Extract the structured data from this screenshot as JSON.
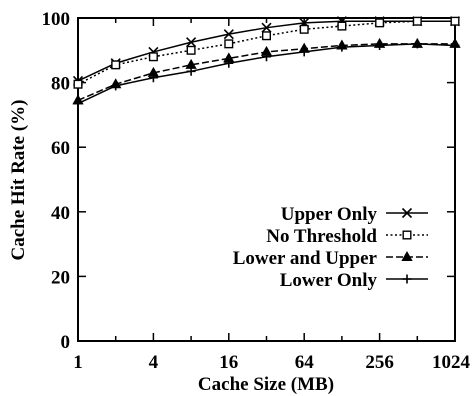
{
  "chart_data": {
    "type": "line",
    "xlabel": "Cache Size (MB)",
    "ylabel": "Cache Hit Rate (%)",
    "x_scale": "log2",
    "xlim": [
      1,
      1024
    ],
    "ylim": [
      0,
      100
    ],
    "x_ticks": [
      1,
      4,
      16,
      64,
      256,
      1024
    ],
    "y_ticks": [
      0,
      20,
      40,
      60,
      80,
      100
    ],
    "legend_position": "lower-right",
    "grid": false,
    "series": [
      {
        "name": "Upper Only",
        "marker": "x",
        "dash": "solid",
        "x": [
          1,
          2,
          4,
          8,
          16,
          32,
          64,
          128,
          256,
          512,
          1024
        ],
        "y": [
          80.5,
          86,
          89.5,
          92.5,
          95,
          97,
          98.5,
          99,
          99,
          99,
          99
        ]
      },
      {
        "name": "No Threshold",
        "marker": "square",
        "dash": "dotted",
        "x": [
          1,
          2,
          4,
          8,
          16,
          32,
          64,
          128,
          256,
          512,
          1024
        ],
        "y": [
          79.5,
          85.5,
          88,
          90,
          92,
          94.5,
          96.5,
          97.5,
          98.5,
          99,
          99
        ]
      },
      {
        "name": "Lower and Upper",
        "marker": "triangle",
        "dash": "dashed",
        "x": [
          1,
          2,
          4,
          8,
          16,
          32,
          64,
          128,
          256,
          512,
          1024
        ],
        "y": [
          74.5,
          79.5,
          83,
          85.5,
          87.5,
          89.5,
          90.5,
          91.5,
          92,
          92,
          92
        ]
      },
      {
        "name": "Lower Only",
        "marker": "plus",
        "dash": "solid",
        "x": [
          1,
          2,
          4,
          8,
          16,
          32,
          64,
          128,
          256,
          512,
          1024
        ],
        "y": [
          73.5,
          79,
          81.5,
          83.5,
          86,
          88,
          89.5,
          91,
          91.5,
          92,
          91.5
        ]
      }
    ]
  }
}
